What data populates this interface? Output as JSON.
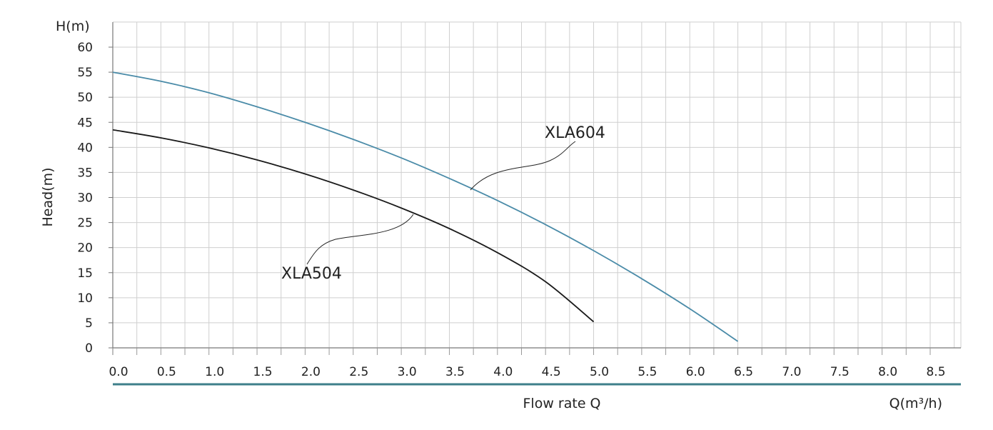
{
  "chart_data": {
    "type": "line",
    "y_axis_unit_label": "H(m)",
    "ylabel": "Head(m)",
    "xlabel": "Flow rate Q",
    "x_axis_unit_label": "Q(m³/h)",
    "x_ticks": [
      "0.0",
      "0.5",
      "1.0",
      "1.5",
      "2.0",
      "2.5",
      "3.0",
      "3.5",
      "4.0",
      "4.5",
      "5.0",
      "5.5",
      "6.0",
      "6.5",
      "7.0",
      "7.5",
      "8.0",
      "8.5"
    ],
    "y_ticks": [
      "0",
      "5",
      "10",
      "15",
      "20",
      "25",
      "30",
      "35",
      "40",
      "45",
      "50",
      "55",
      "60"
    ],
    "xlim": [
      0,
      9
    ],
    "ylim": [
      0,
      65
    ],
    "grid": true,
    "series": [
      {
        "name": "XLA604",
        "color": "#4a8ba8",
        "x": [
          0,
          0.5,
          1.0,
          1.5,
          2.0,
          2.5,
          3.0,
          3.5,
          4.0,
          4.5,
          5.0,
          5.5,
          6.0,
          6.5
        ],
        "y": [
          55.0,
          53.2,
          50.9,
          48.1,
          45.0,
          41.6,
          37.9,
          33.8,
          29.4,
          24.6,
          19.4,
          13.8,
          7.8,
          1.3
        ]
      },
      {
        "name": "XLA504",
        "color": "#1a1a1a",
        "x": [
          0,
          0.5,
          1.0,
          1.5,
          2.0,
          2.5,
          3.0,
          3.5,
          4.0,
          4.5,
          5.0
        ],
        "y": [
          43.5,
          41.9,
          39.9,
          37.5,
          34.7,
          31.5,
          27.9,
          23.8,
          19.0,
          13.2,
          5.2
        ]
      }
    ]
  }
}
